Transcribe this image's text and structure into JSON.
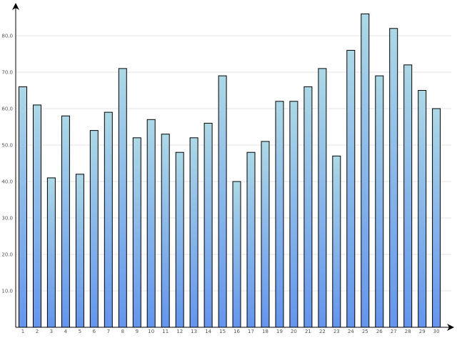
{
  "chart_data": {
    "type": "bar",
    "title": "",
    "xlabel": "",
    "ylabel": "",
    "ylim": [
      0,
      88
    ],
    "yticks": [
      10.0,
      20.0,
      30.0,
      40.0,
      50.0,
      60.0,
      70.0,
      80.0
    ],
    "ytick_labels": [
      "10.0",
      "20.0",
      "30.0",
      "40.0",
      "50.0",
      "60.0",
      "70.0",
      "80.0"
    ],
    "grid": true,
    "legend": "none",
    "categories": [
      "1",
      "2",
      "3",
      "4",
      "5",
      "6",
      "7",
      "8",
      "9",
      "10",
      "11",
      "12",
      "13",
      "14",
      "15",
      "16",
      "17",
      "18",
      "19",
      "20",
      "21",
      "22",
      "23",
      "24",
      "25",
      "26",
      "27",
      "28",
      "29",
      "30"
    ],
    "series": [
      {
        "values": [
          66,
          61,
          41,
          58,
          42,
          54,
          59,
          71,
          52,
          57,
          53,
          48,
          52,
          56,
          69,
          40,
          48,
          51,
          62,
          62,
          66,
          71,
          47,
          76,
          86,
          69,
          82,
          72,
          65,
          60
        ]
      }
    ],
    "colors": {
      "bar_top": "#add8e6",
      "bar_bottom": "#6495ed",
      "bar_outline": "#000000",
      "grid": "#e6e6e6",
      "axis": "#000000"
    }
  }
}
